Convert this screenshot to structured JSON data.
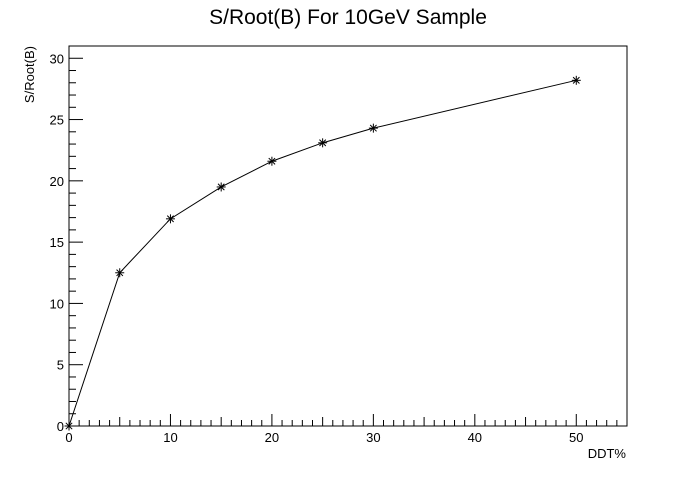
{
  "chart_data": {
    "type": "line",
    "title": "S/Root(B) For 10GeV Sample",
    "xlabel": "DDT%",
    "ylabel": "S/Root(B)",
    "xlim": [
      0,
      55
    ],
    "ylim": [
      0,
      31
    ],
    "grid": false,
    "marker": "asterisk",
    "x_ticks": [
      0,
      10,
      20,
      30,
      40,
      50
    ],
    "y_ticks": [
      0,
      5,
      10,
      15,
      20,
      25,
      30
    ],
    "series": [
      {
        "x": [
          0,
          5,
          10,
          15,
          20,
          25,
          30,
          50
        ],
        "y": [
          0,
          12.5,
          16.9,
          19.5,
          21.6,
          23.1,
          24.3,
          28.2
        ]
      }
    ]
  }
}
